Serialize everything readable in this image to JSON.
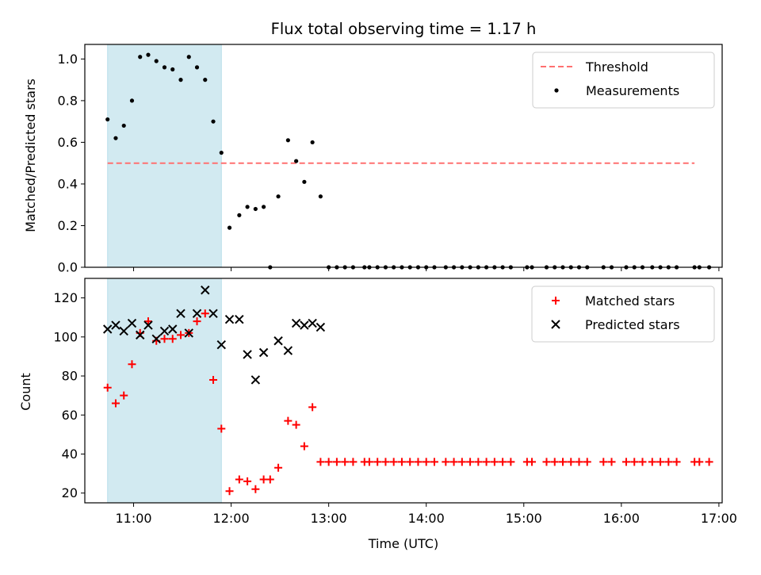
{
  "chart_data": [
    {
      "type": "scatter",
      "title": "Flux total observing time = 1.17 h",
      "xlabel": "",
      "ylabel": "Matched/Predicted stars",
      "xlim": [
        "10:30",
        "17:02"
      ],
      "ylim": [
        0,
        1.07
      ],
      "yticks": [
        "0.0",
        "0.2",
        "0.4",
        "0.6",
        "0.8",
        "1.0"
      ],
      "legend_position": "top-right",
      "shaded_span": [
        "10:44",
        "11:54"
      ],
      "shade_color": "#add8e6",
      "threshold": {
        "name": "Threshold",
        "value": 0.5,
        "x_range": [
          "10:44",
          "16:45"
        ],
        "color": "#ff7070"
      },
      "series": [
        {
          "name": "Measurements",
          "color": "#000000",
          "points": [
            [
              "10:44",
              0.71
            ],
            [
              "10:49",
              0.62
            ],
            [
              "10:54",
              0.68
            ],
            [
              "10:59",
              0.8
            ],
            [
              "11:04",
              1.01
            ],
            [
              "11:09",
              1.02
            ],
            [
              "11:14",
              0.99
            ],
            [
              "11:19",
              0.96
            ],
            [
              "11:24",
              0.95
            ],
            [
              "11:29",
              0.9
            ],
            [
              "11:34",
              1.01
            ],
            [
              "11:39",
              0.96
            ],
            [
              "11:44",
              0.9
            ],
            [
              "11:49",
              0.7
            ],
            [
              "11:54",
              0.55
            ],
            [
              "11:59",
              0.19
            ],
            [
              "12:05",
              0.25
            ],
            [
              "12:10",
              0.29
            ],
            [
              "12:15",
              0.28
            ],
            [
              "12:20",
              0.29
            ],
            [
              "12:24",
              0.0
            ],
            [
              "12:29",
              0.34
            ],
            [
              "12:35",
              0.61
            ],
            [
              "12:40",
              0.51
            ],
            [
              "12:45",
              0.41
            ],
            [
              "12:50",
              0.6
            ],
            [
              "12:55",
              0.34
            ],
            [
              "13:00",
              0.0
            ],
            [
              "13:05",
              0.0
            ],
            [
              "13:10",
              0.0
            ],
            [
              "13:15",
              0.0
            ],
            [
              "13:22",
              0.0
            ],
            [
              "13:25",
              0.0
            ],
            [
              "13:30",
              0.0
            ],
            [
              "13:35",
              0.0
            ],
            [
              "13:40",
              0.0
            ],
            [
              "13:45",
              0.0
            ],
            [
              "13:50",
              0.0
            ],
            [
              "13:55",
              0.0
            ],
            [
              "14:00",
              0.0
            ],
            [
              "14:05",
              0.0
            ],
            [
              "14:12",
              0.0
            ],
            [
              "14:17",
              0.0
            ],
            [
              "14:22",
              0.0
            ],
            [
              "14:27",
              0.0
            ],
            [
              "14:32",
              0.0
            ],
            [
              "14:37",
              0.0
            ],
            [
              "14:42",
              0.0
            ],
            [
              "14:47",
              0.0
            ],
            [
              "14:52",
              0.0
            ],
            [
              "15:02",
              0.0
            ],
            [
              "15:05",
              0.0
            ],
            [
              "15:14",
              0.0
            ],
            [
              "15:19",
              0.0
            ],
            [
              "15:24",
              0.0
            ],
            [
              "15:29",
              0.0
            ],
            [
              "15:34",
              0.0
            ],
            [
              "15:39",
              0.0
            ],
            [
              "15:49",
              0.0
            ],
            [
              "15:54",
              0.0
            ],
            [
              "16:03",
              0.0
            ],
            [
              "16:08",
              0.0
            ],
            [
              "16:13",
              0.0
            ],
            [
              "16:19",
              0.0
            ],
            [
              "16:24",
              0.0
            ],
            [
              "16:29",
              0.0
            ],
            [
              "16:34",
              0.0
            ],
            [
              "16:45",
              0.0
            ],
            [
              "16:48",
              0.0
            ],
            [
              "16:54",
              0.0
            ]
          ]
        }
      ]
    },
    {
      "type": "scatter",
      "title": "",
      "xlabel": "Time (UTC)",
      "ylabel": "Count",
      "xlim": [
        "10:30",
        "17:02"
      ],
      "ylim": [
        15,
        130
      ],
      "yticks": [
        "20",
        "40",
        "60",
        "80",
        "100",
        "120"
      ],
      "xticks": [
        "11:00",
        "12:00",
        "13:00",
        "14:00",
        "15:00",
        "16:00",
        "17:00"
      ],
      "legend_position": "top-right",
      "shaded_span": [
        "10:44",
        "11:54"
      ],
      "series": [
        {
          "name": "Matched stars",
          "color": "#ff0000",
          "marker": "+",
          "points": [
            [
              "10:44",
              74
            ],
            [
              "10:49",
              66
            ],
            [
              "10:54",
              70
            ],
            [
              "10:59",
              86
            ],
            [
              "11:04",
              102
            ],
            [
              "11:09",
              108
            ],
            [
              "11:14",
              98
            ],
            [
              "11:19",
              99
            ],
            [
              "11:24",
              99
            ],
            [
              "11:29",
              101
            ],
            [
              "11:34",
              102
            ],
            [
              "11:39",
              108
            ],
            [
              "11:44",
              112
            ],
            [
              "11:49",
              78
            ],
            [
              "11:54",
              53
            ],
            [
              "11:59",
              21
            ],
            [
              "12:05",
              27
            ],
            [
              "12:10",
              26
            ],
            [
              "12:15",
              22
            ],
            [
              "12:20",
              27
            ],
            [
              "12:24",
              27
            ],
            [
              "12:29",
              33
            ],
            [
              "12:35",
              57
            ],
            [
              "12:40",
              55
            ],
            [
              "12:45",
              44
            ],
            [
              "12:50",
              64
            ],
            [
              "12:55",
              36
            ],
            [
              "13:00",
              36
            ],
            [
              "13:05",
              36
            ],
            [
              "13:10",
              36
            ],
            [
              "13:15",
              36
            ],
            [
              "13:22",
              36
            ],
            [
              "13:25",
              36
            ],
            [
              "13:30",
              36
            ],
            [
              "13:35",
              36
            ],
            [
              "13:40",
              36
            ],
            [
              "13:45",
              36
            ],
            [
              "13:50",
              36
            ],
            [
              "13:55",
              36
            ],
            [
              "14:00",
              36
            ],
            [
              "14:05",
              36
            ],
            [
              "14:12",
              36
            ],
            [
              "14:17",
              36
            ],
            [
              "14:22",
              36
            ],
            [
              "14:27",
              36
            ],
            [
              "14:32",
              36
            ],
            [
              "14:37",
              36
            ],
            [
              "14:42",
              36
            ],
            [
              "14:47",
              36
            ],
            [
              "14:52",
              36
            ],
            [
              "15:02",
              36
            ],
            [
              "15:05",
              36
            ],
            [
              "15:14",
              36
            ],
            [
              "15:19",
              36
            ],
            [
              "15:24",
              36
            ],
            [
              "15:29",
              36
            ],
            [
              "15:34",
              36
            ],
            [
              "15:39",
              36
            ],
            [
              "15:49",
              36
            ],
            [
              "15:54",
              36
            ],
            [
              "16:03",
              36
            ],
            [
              "16:08",
              36
            ],
            [
              "16:13",
              36
            ],
            [
              "16:19",
              36
            ],
            [
              "16:24",
              36
            ],
            [
              "16:29",
              36
            ],
            [
              "16:34",
              36
            ],
            [
              "16:45",
              36
            ],
            [
              "16:48",
              36
            ],
            [
              "16:54",
              36
            ]
          ]
        },
        {
          "name": "Predicted stars",
          "color": "#000000",
          "marker": "x",
          "points": [
            [
              "10:44",
              104
            ],
            [
              "10:49",
              106
            ],
            [
              "10:54",
              103
            ],
            [
              "10:59",
              107
            ],
            [
              "11:04",
              101
            ],
            [
              "11:09",
              106
            ],
            [
              "11:14",
              99
            ],
            [
              "11:19",
              103
            ],
            [
              "11:24",
              104
            ],
            [
              "11:29",
              112
            ],
            [
              "11:34",
              102
            ],
            [
              "11:39",
              112
            ],
            [
              "11:44",
              124
            ],
            [
              "11:49",
              112
            ],
            [
              "11:54",
              96
            ],
            [
              "11:59",
              109
            ],
            [
              "12:05",
              109
            ],
            [
              "12:10",
              91
            ],
            [
              "12:15",
              78
            ],
            [
              "12:20",
              92
            ],
            [
              "12:29",
              98
            ],
            [
              "12:35",
              93
            ],
            [
              "12:40",
              107
            ],
            [
              "12:45",
              106
            ],
            [
              "12:50",
              107
            ],
            [
              "12:55",
              105
            ]
          ]
        }
      ]
    }
  ]
}
